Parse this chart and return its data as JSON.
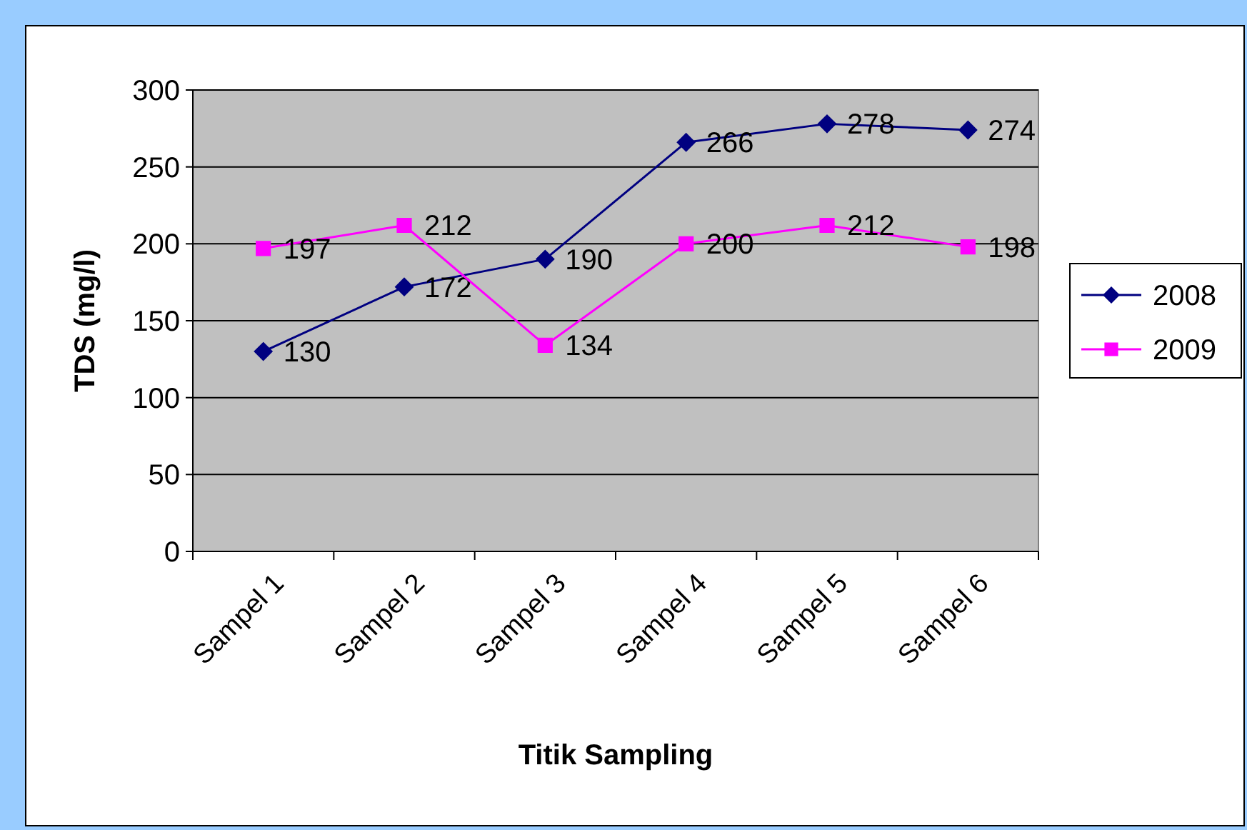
{
  "chart_data": {
    "type": "line",
    "xlabel": "Titik Sampling",
    "ylabel": "TDS (mg/l)",
    "categories": [
      "Sampel 1",
      "Sampel 2",
      "Sampel 3",
      "Sampel 4",
      "Sampel 5",
      "Sampel 6"
    ],
    "series": [
      {
        "name": "2008",
        "color": "#000080",
        "marker": "diamond",
        "values": [
          130,
          172,
          190,
          266,
          278,
          274
        ]
      },
      {
        "name": "2009",
        "color": "#ff00ff",
        "marker": "square",
        "values": [
          197,
          212,
          134,
          200,
          212,
          198
        ]
      }
    ],
    "ylim": [
      0,
      300
    ],
    "yticks": [
      0,
      50,
      100,
      150,
      200,
      250,
      300
    ],
    "grid": "y",
    "legend": "right",
    "data_labels": true,
    "line_style": "solid"
  }
}
